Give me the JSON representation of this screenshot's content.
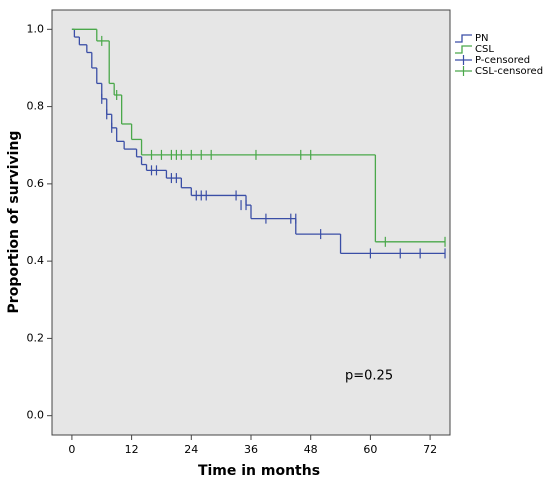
{
  "chart_data": {
    "type": "step",
    "xlabel": "Time in months",
    "ylabel": "Proportion of surviving",
    "xlim": [
      -4,
      76
    ],
    "ylim": [
      -0.05,
      1.05
    ],
    "xticks": [
      0,
      12,
      24,
      36,
      48,
      60,
      72
    ],
    "yticks": [
      {
        "value": 0,
        "label": "0.0"
      },
      {
        "value": 0.2,
        "label": "0.2"
      },
      {
        "value": 0.4,
        "label": "0.4"
      },
      {
        "value": 0.6,
        "label": "0.6"
      },
      {
        "value": 0.8,
        "label": "0.8"
      },
      {
        "value": 1,
        "label": "1.0"
      }
    ],
    "annotation": "p=0.25",
    "series": [
      {
        "name": "PN",
        "color": "#3a4ea6",
        "kind": "step",
        "x": [
          0,
          0.5,
          1.5,
          3,
          4,
          5,
          6,
          7,
          8,
          9,
          10.5,
          13,
          14,
          15,
          19,
          22,
          24,
          35,
          36,
          45,
          54,
          75
        ],
        "values": [
          1.0,
          0.98,
          0.96,
          0.94,
          0.9,
          0.86,
          0.82,
          0.78,
          0.745,
          0.71,
          0.69,
          0.67,
          0.65,
          0.635,
          0.615,
          0.59,
          0.57,
          0.545,
          0.51,
          0.47,
          0.42,
          0.42
        ]
      },
      {
        "name": "CSL",
        "color": "#4aa84a",
        "kind": "step",
        "x": [
          0,
          5,
          7.5,
          8.5,
          10,
          12,
          14,
          61,
          75
        ],
        "values": [
          1.0,
          0.97,
          0.86,
          0.83,
          0.755,
          0.715,
          0.675,
          0.45,
          0.45
        ]
      },
      {
        "name": "P-censored",
        "color": "#3a4ea6",
        "kind": "censor",
        "x": [
          6,
          7,
          8,
          16,
          17,
          20,
          21,
          25,
          26,
          27,
          33,
          34,
          35,
          39,
          44,
          45,
          50,
          60,
          66,
          70,
          75
        ],
        "values": [
          0.82,
          0.78,
          0.745,
          0.635,
          0.635,
          0.615,
          0.615,
          0.57,
          0.57,
          0.57,
          0.57,
          0.545,
          0.545,
          0.51,
          0.51,
          0.51,
          0.47,
          0.42,
          0.42,
          0.42,
          0.42
        ]
      },
      {
        "name": "CSL-censored",
        "color": "#4aa84a",
        "kind": "censor",
        "x": [
          6,
          9,
          16,
          18,
          20,
          21,
          22,
          24,
          26,
          28,
          37,
          46,
          48,
          63,
          75
        ],
        "values": [
          0.97,
          0.83,
          0.675,
          0.675,
          0.675,
          0.675,
          0.675,
          0.675,
          0.675,
          0.675,
          0.675,
          0.675,
          0.675,
          0.45,
          0.45
        ]
      }
    ]
  }
}
